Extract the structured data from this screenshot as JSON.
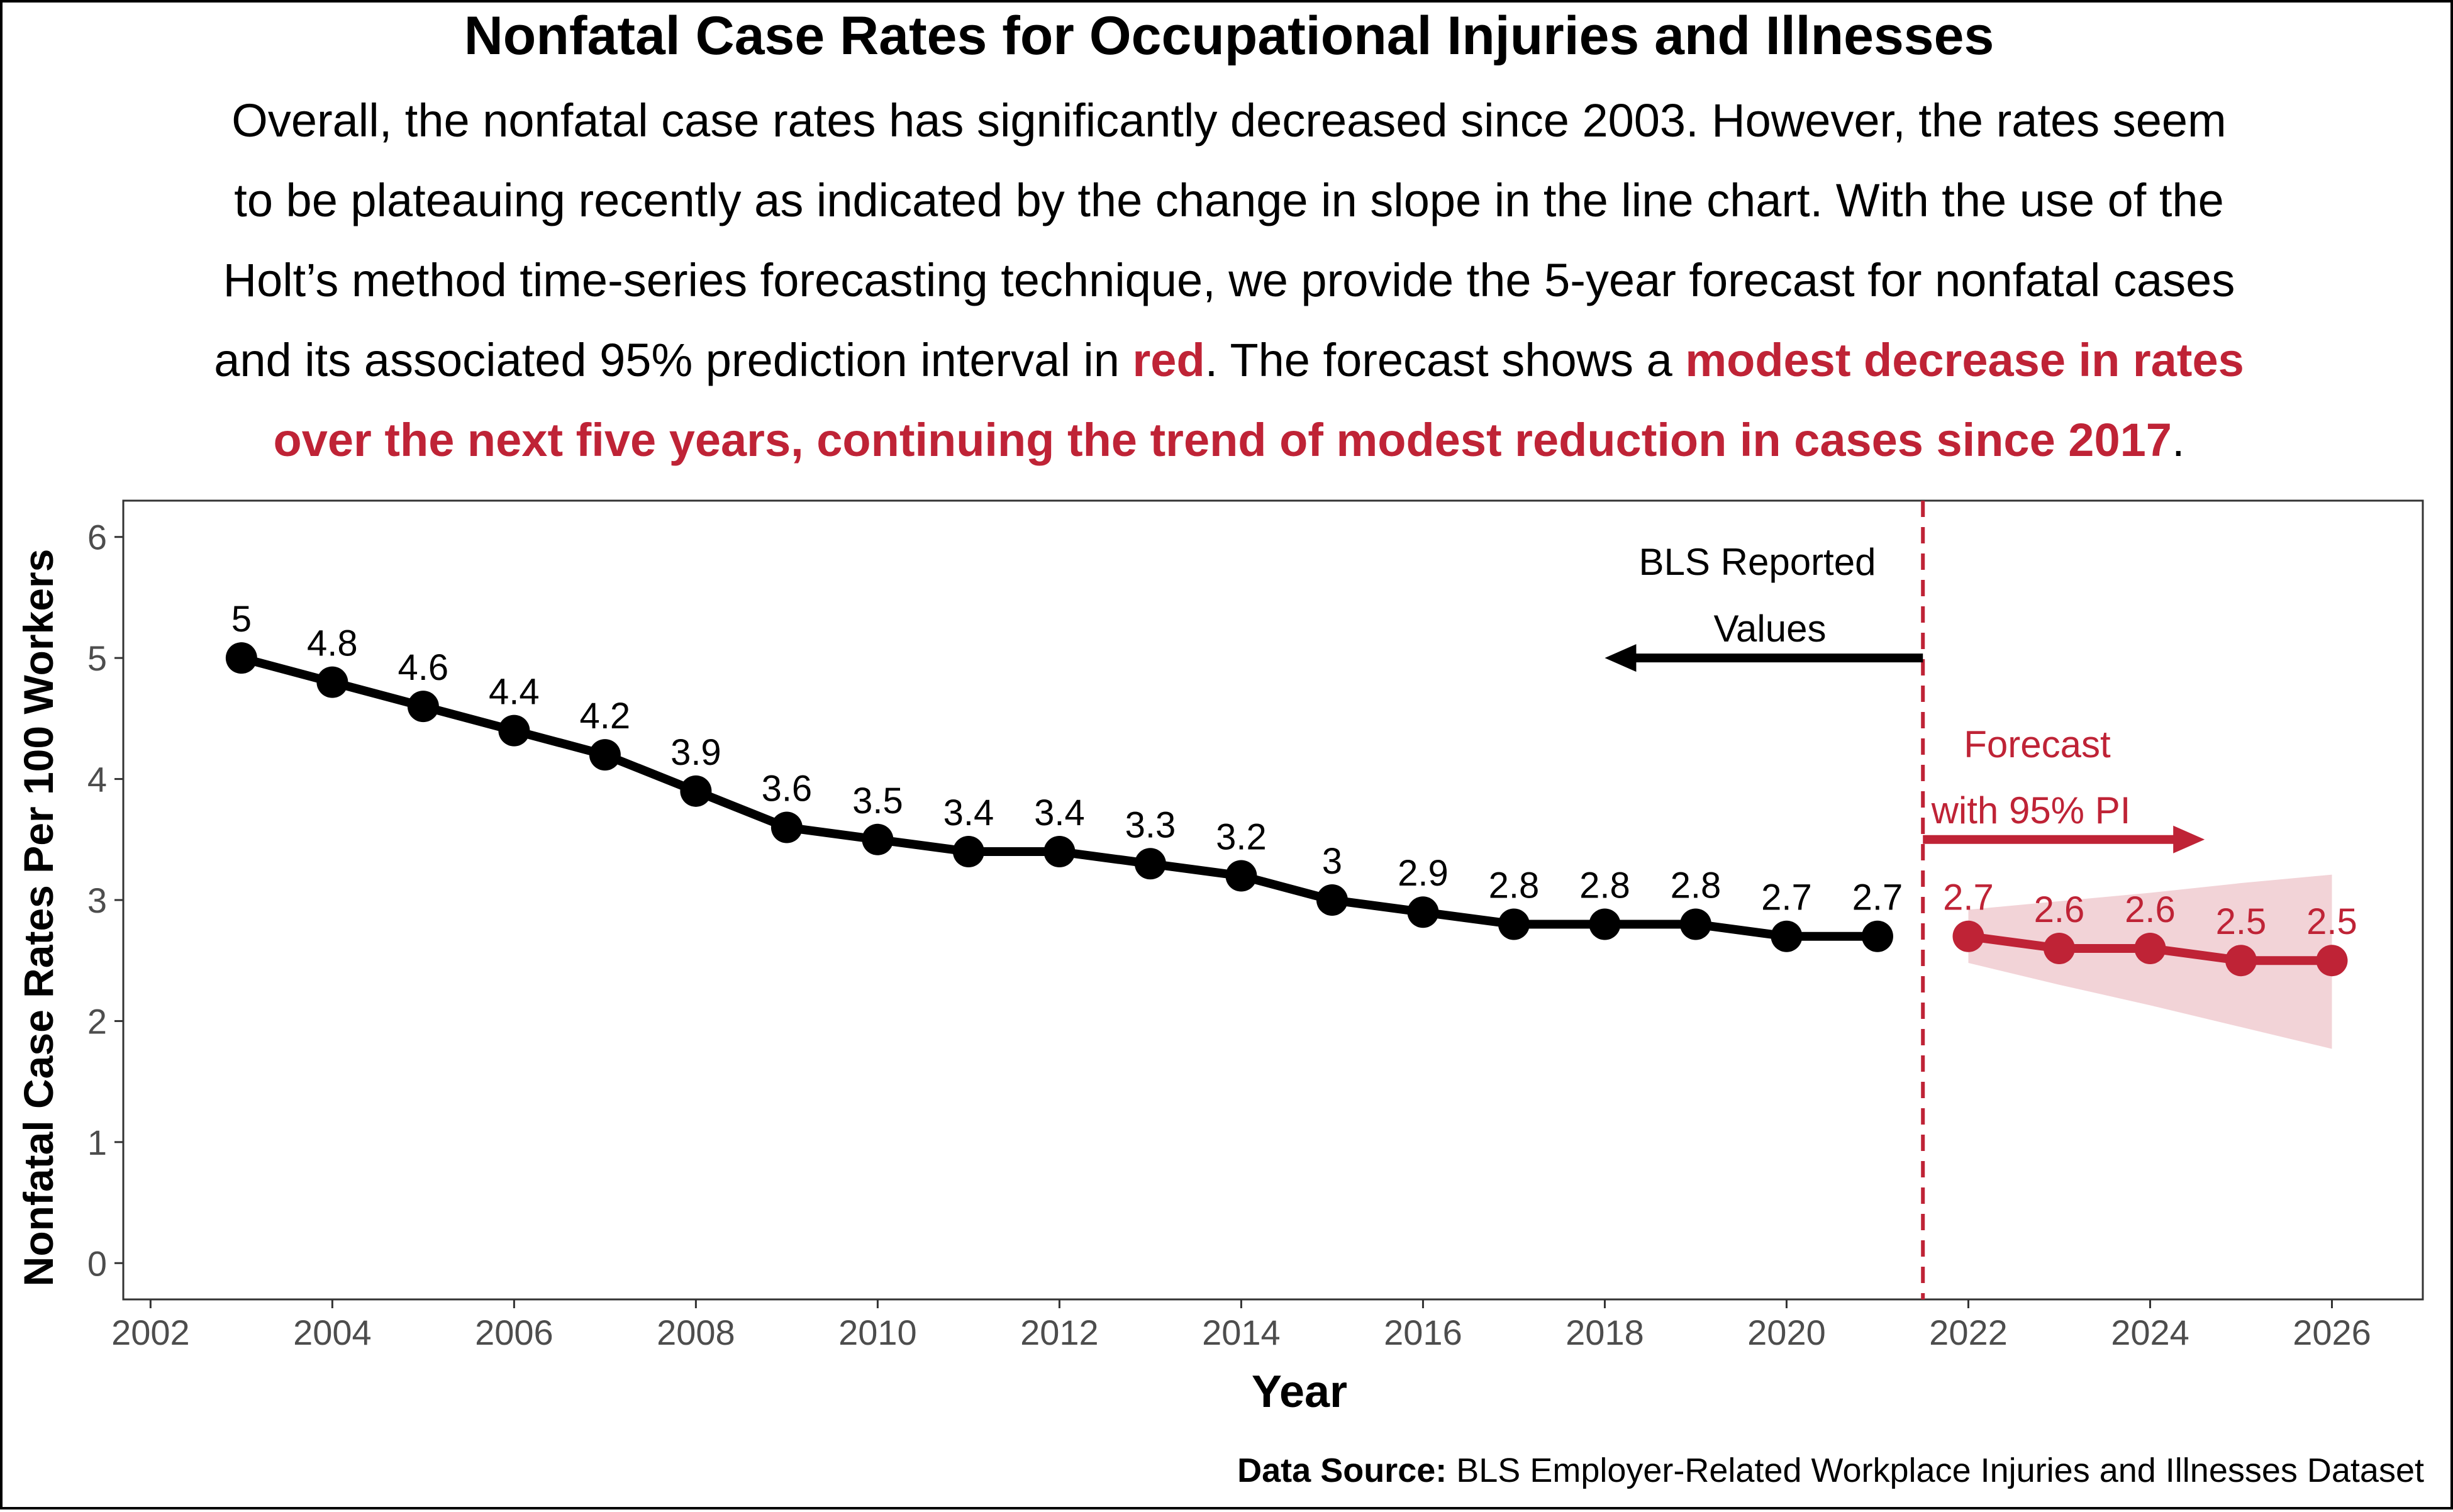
{
  "chart_data": {
    "type": "line",
    "title": "Nonfatal Case Rates for Occupational Injuries and Illnesses",
    "subtitle": [
      [
        {
          "text": "Overall, the nonfatal case rates has significantly decreased since 2003. However, the rates seem"
        }
      ],
      [
        {
          "text": "to be plateauing recently as indicated by the change in slope in the line chart. With the use of the"
        }
      ],
      [
        {
          "text": "Holt’s method time-series forecasting technique, we provide the 5-year forecast for nonfatal cases"
        }
      ],
      [
        {
          "text": "and its associated 95% prediction interval in "
        },
        {
          "text": "red",
          "red": true
        },
        {
          "text": ". The forecast shows a "
        },
        {
          "text": "modest decrease in rates",
          "red": true
        }
      ],
      [
        {
          "text": "over the next five years, continuing the trend of modest reduction in cases since 2017",
          "red": true
        },
        {
          "text": "."
        }
      ]
    ],
    "xlabel": "Year",
    "ylabel": "Nonfatal Case Rates Per 100 Workers",
    "xlim": [
      2001.7,
      2027.0
    ],
    "ylim": [
      -0.3,
      6.3
    ],
    "x_ticks": [
      2002,
      2004,
      2006,
      2008,
      2010,
      2012,
      2014,
      2016,
      2018,
      2020,
      2022,
      2024,
      2026
    ],
    "y_ticks": [
      0,
      1,
      2,
      3,
      4,
      5,
      6
    ],
    "grid": false,
    "series": [
      {
        "x": [
          2003,
          2004,
          2005,
          2006,
          2007,
          2008,
          2009,
          2010,
          2011,
          2012,
          2013,
          2014,
          2015,
          2016,
          2017,
          2018,
          2019,
          2020,
          2021
        ],
        "values": [
          5,
          4.8,
          4.6,
          4.4,
          4.2,
          3.9,
          3.6,
          3.5,
          3.4,
          3.4,
          3.3,
          3.2,
          3,
          2.9,
          2.8,
          2.8,
          2.8,
          2.7,
          2.7
        ],
        "color": "#000000"
      },
      {
        "x": [
          2022,
          2023,
          2024,
          2025,
          2026
        ],
        "values": [
          2.7,
          2.6,
          2.6,
          2.5,
          2.5
        ],
        "lower": [
          2.48,
          2.3,
          2.13,
          1.95,
          1.77
        ],
        "upper": [
          2.92,
          2.99,
          3.06,
          3.14,
          3.21
        ],
        "color": "#BF2336",
        "band_color": "#BF2336"
      }
    ],
    "cutoff_x": 2021.5,
    "annotations": {
      "reported": {
        "lines": [
          "BLS Reported",
          "Values"
        ],
        "arrow_y": 5.0,
        "arrow_from_x": 2021.5,
        "arrow_to_x": 2018.0
      },
      "forecast": {
        "lines": [
          "Forecast",
          "with 95% PI"
        ],
        "arrow_y": 3.5,
        "arrow_from_x": 2021.5,
        "arrow_to_x": 2024.6
      }
    },
    "accent_color": "#BF2336"
  },
  "source": {
    "label": "Data Source:",
    "text": " BLS Employer-Related Workplace Injuries and Illnesses Dataset"
  }
}
